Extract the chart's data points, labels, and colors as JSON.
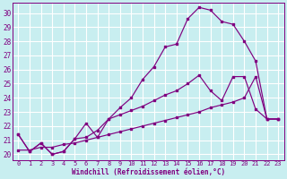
{
  "xlabel": "Windchill (Refroidissement éolien,°C)",
  "bg_color": "#c8eef0",
  "grid_color": "#ffffff",
  "line_color": "#800080",
  "x_ticks": [
    0,
    1,
    2,
    3,
    4,
    5,
    6,
    7,
    8,
    9,
    10,
    11,
    12,
    13,
    14,
    15,
    16,
    17,
    18,
    19,
    20,
    21,
    22,
    23
  ],
  "y_ticks": [
    20,
    21,
    22,
    23,
    24,
    25,
    26,
    27,
    28,
    29,
    30
  ],
  "xlim": [
    -0.5,
    23.5
  ],
  "ylim": [
    19.6,
    30.7
  ],
  "line1_x": [
    0,
    1,
    2,
    3,
    4,
    5,
    6,
    7,
    8,
    9,
    10,
    11,
    12,
    13,
    14,
    15,
    16,
    17,
    18,
    19,
    20,
    21,
    22,
    23
  ],
  "line1_y": [
    21.4,
    20.2,
    20.8,
    20.0,
    20.2,
    21.1,
    21.2,
    21.7,
    22.5,
    23.3,
    24.0,
    25.3,
    26.2,
    27.6,
    27.8,
    29.6,
    30.4,
    30.2,
    29.4,
    29.2,
    28.0,
    26.6,
    22.5,
    22.5
  ],
  "line2_x": [
    0,
    1,
    2,
    3,
    4,
    5,
    6,
    7,
    8,
    9,
    10,
    11,
    12,
    13,
    14,
    15,
    16,
    17,
    18,
    19,
    20,
    21,
    22,
    23
  ],
  "line2_y": [
    20.3,
    20.3,
    20.5,
    20.5,
    20.7,
    20.8,
    21.0,
    21.2,
    21.4,
    21.6,
    21.8,
    22.0,
    22.2,
    22.4,
    22.6,
    22.8,
    23.0,
    23.3,
    23.5,
    23.7,
    24.0,
    25.5,
    22.5,
    22.5
  ],
  "line3_x": [
    0,
    1,
    2,
    3,
    4,
    5,
    6,
    7,
    8,
    9,
    10,
    11,
    12,
    13,
    14,
    15,
    16,
    17,
    18,
    19,
    20,
    21,
    22,
    23
  ],
  "line3_y": [
    21.4,
    20.2,
    20.8,
    20.0,
    20.2,
    21.1,
    22.2,
    21.2,
    22.5,
    22.8,
    23.1,
    23.4,
    23.8,
    24.2,
    24.5,
    25.0,
    25.6,
    24.5,
    23.8,
    25.5,
    25.5,
    23.2,
    22.5,
    22.5
  ]
}
